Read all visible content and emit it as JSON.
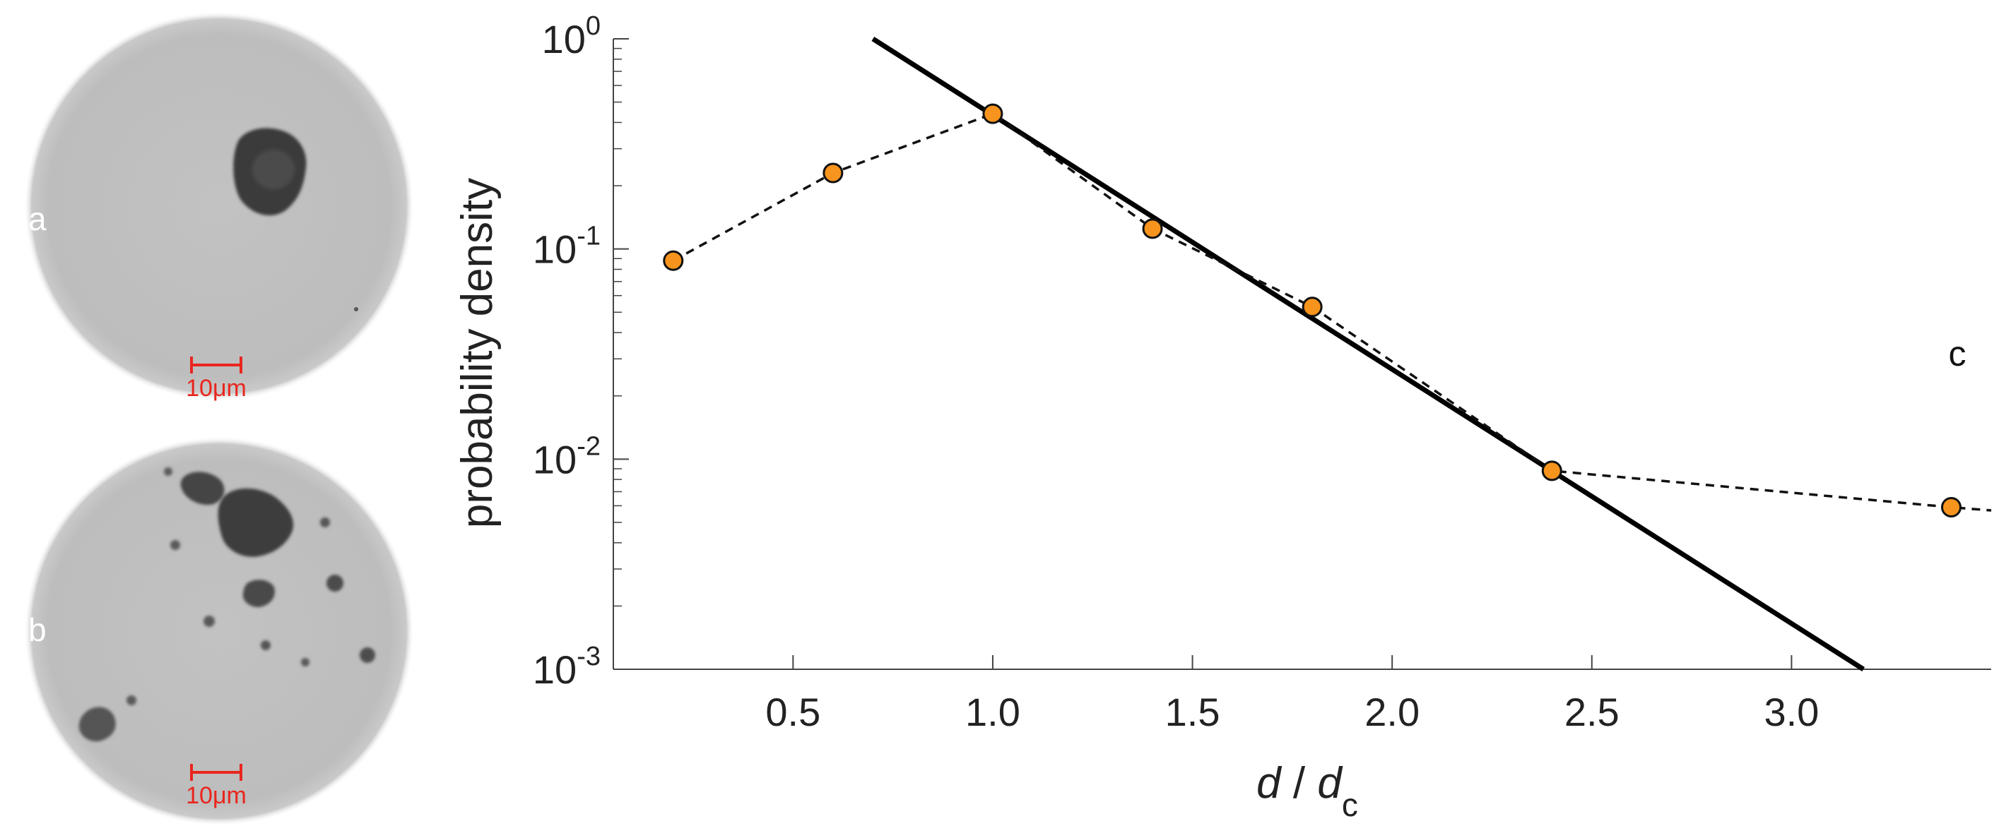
{
  "panels": {
    "a": {
      "label": "a",
      "scale_bar_label": "10μm",
      "scale_bar_color": "#e8261e"
    },
    "b": {
      "label": "b",
      "scale_bar_label": "10μm",
      "scale_bar_color": "#e8261e"
    },
    "c": {
      "label": "c"
    }
  },
  "chart_data": {
    "type": "line",
    "title": "",
    "xlabel": "d / dc",
    "xlabel_parts": {
      "var": "d",
      "sep": " / ",
      "denom": "d",
      "sub": "c"
    },
    "ylabel": "probability density",
    "yscale": "log",
    "xlim": [
      0.05,
      3.5
    ],
    "ylim": [
      0.001,
      1
    ],
    "grid": false,
    "legend": "none",
    "x_ticks": [
      0.5,
      1.0,
      1.5,
      2.0,
      2.5,
      3.0
    ],
    "x_tick_labels": [
      "0.5",
      "1.0",
      "1.5",
      "2.0",
      "2.5",
      "3.0"
    ],
    "y_ticks": [
      0.001,
      0.01,
      0.1,
      1
    ],
    "y_tick_labels": [
      {
        "base": "10",
        "exp": "-3"
      },
      {
        "base": "10",
        "exp": "-2"
      },
      {
        "base": "10",
        "exp": "-1"
      },
      {
        "base": "10",
        "exp": "0"
      }
    ],
    "series": [
      {
        "style": "markers-dashed",
        "marker_color": "#f7941d",
        "x": [
          0.2,
          0.6,
          1.0,
          1.4,
          1.8,
          2.4,
          3.4
        ],
        "y": [
          0.088,
          0.23,
          0.44,
          0.125,
          0.053,
          0.0088,
          0.0059
        ]
      },
      {
        "style": "solid-fit",
        "color": "#000000",
        "x": [
          0.7,
          3.18
        ],
        "y": [
          1.0,
          0.001
        ]
      }
    ],
    "dashed_extension": {
      "x": [
        3.4,
        3.5
      ],
      "y": [
        0.0059,
        0.0057
      ]
    }
  }
}
